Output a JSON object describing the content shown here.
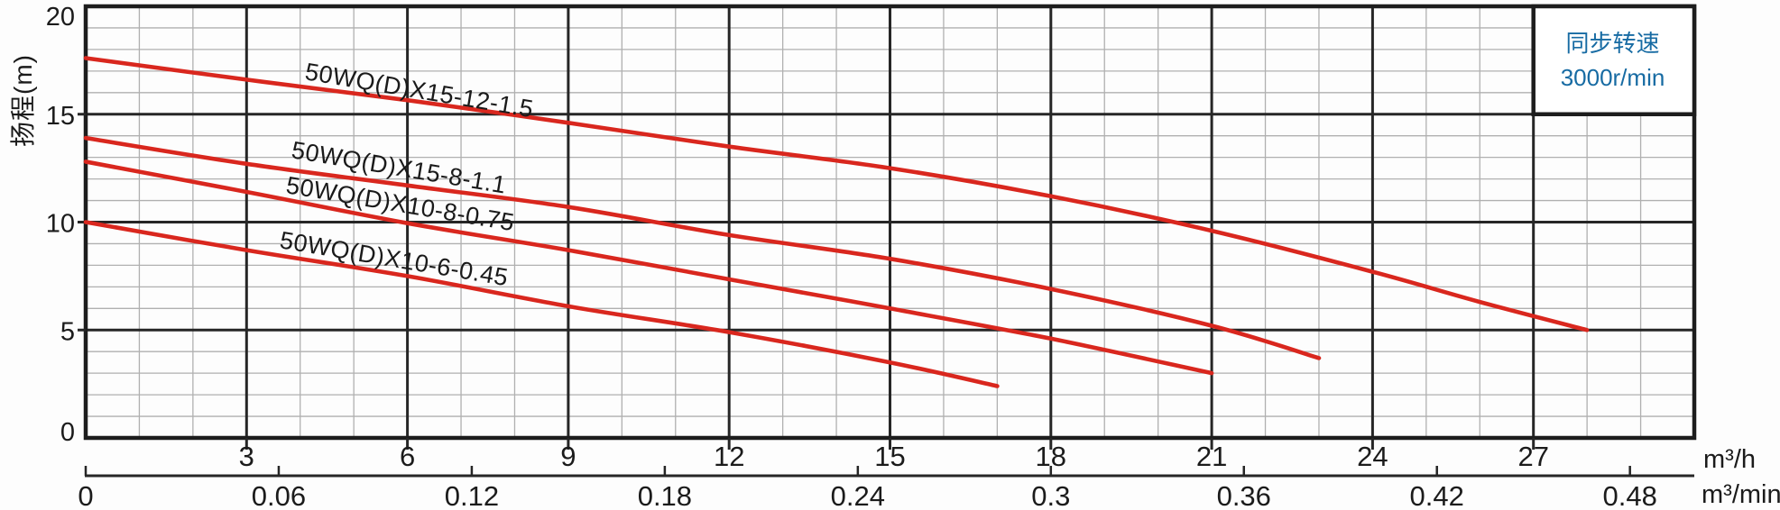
{
  "chart_data": {
    "type": "line",
    "title": "",
    "ylabel": "扬程(m)",
    "y_axis": {
      "unit": "m",
      "min": 0,
      "max": 20,
      "major_step": 5,
      "minor_step": 1,
      "tick_labels": [
        "0",
        "5",
        "10",
        "15",
        "20"
      ],
      "tick_values": [
        0,
        5,
        10,
        15,
        20
      ]
    },
    "x_axis_primary": {
      "unit": "m³/h",
      "min": 0,
      "max": 30,
      "major_step": 3,
      "minor_step": 1,
      "tick_labels": [
        "3",
        "6",
        "9",
        "12",
        "15",
        "18",
        "21",
        "24",
        "27"
      ],
      "tick_values": [
        3,
        6,
        9,
        12,
        15,
        18,
        21,
        24,
        27
      ]
    },
    "x_axis_secondary": {
      "unit": "m³/min",
      "tick_labels": [
        "0",
        "0.06",
        "0.12",
        "0.18",
        "0.24",
        "0.3",
        "0.36",
        "0.42",
        "0.48"
      ],
      "tick_values": [
        0,
        0.06,
        0.12,
        0.18,
        0.24,
        0.3,
        0.36,
        0.42,
        0.48
      ],
      "hours_per_unit": 60
    },
    "grid": {
      "minor_on": true,
      "major_on": true
    },
    "curve_color": "#d9271e",
    "series": [
      {
        "name": "50WQ(D)X15-12-1.5",
        "points": [
          [
            0,
            17.6
          ],
          [
            3,
            16.6
          ],
          [
            6,
            15.65
          ],
          [
            9,
            14.6
          ],
          [
            12,
            13.5
          ],
          [
            15,
            12.5
          ],
          [
            18,
            11.2
          ],
          [
            21,
            9.6
          ],
          [
            24,
            7.7
          ],
          [
            26,
            6.3
          ],
          [
            28,
            5.0
          ]
        ],
        "label": {
          "x": 337,
          "y": 88,
          "angle": 9.5
        }
      },
      {
        "name": "50WQ(D)X15-8-1.1",
        "points": [
          [
            0,
            13.9
          ],
          [
            3,
            12.7
          ],
          [
            6,
            11.7
          ],
          [
            9,
            10.7
          ],
          [
            12,
            9.4
          ],
          [
            15,
            8.3
          ],
          [
            18,
            6.9
          ],
          [
            21,
            5.2
          ],
          [
            23,
            3.7
          ]
        ],
        "label": {
          "x": 322,
          "y": 175,
          "angle": 9.5
        }
      },
      {
        "name": "50WQ(D)X10-8-0.75",
        "points": [
          [
            0,
            12.8
          ],
          [
            3,
            11.4
          ],
          [
            6,
            9.95
          ],
          [
            9,
            8.7
          ],
          [
            12,
            7.35
          ],
          [
            15,
            6.0
          ],
          [
            18,
            4.6
          ],
          [
            21,
            3.0
          ]
        ],
        "label": {
          "x": 316,
          "y": 214,
          "angle": 9.5
        }
      },
      {
        "name": "50WQ(D)X10-6-0.45",
        "points": [
          [
            0,
            10.0
          ],
          [
            3,
            8.7
          ],
          [
            6,
            7.5
          ],
          [
            9,
            6.1
          ],
          [
            12,
            4.9
          ],
          [
            15,
            3.5
          ],
          [
            17,
            2.4
          ]
        ],
        "label": {
          "x": 309,
          "y": 275,
          "angle": 9.5
        }
      }
    ],
    "legend": {
      "lines": [
        "同步转速",
        "3000r/min"
      ],
      "text_color": "#176ba3"
    }
  }
}
